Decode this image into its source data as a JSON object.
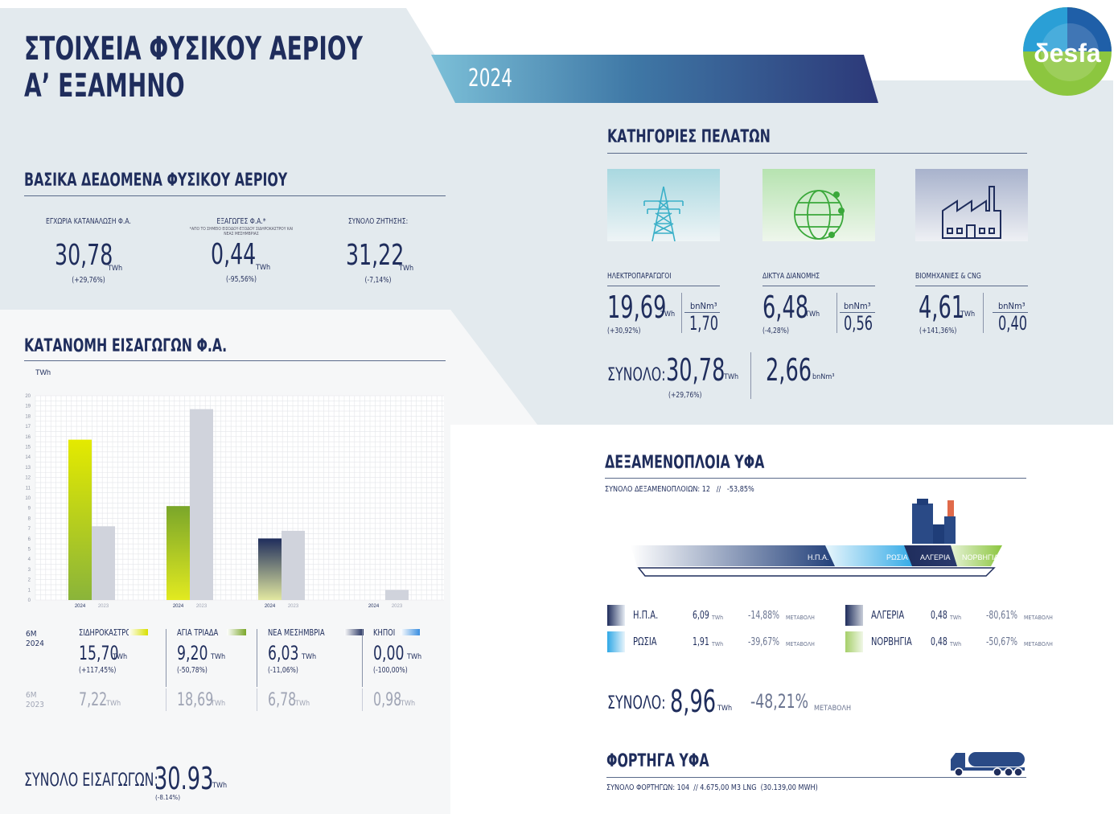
{
  "header": {
    "title_line1": "ΣΤΟΙΧΕΙΑ ΦΥΣΙΚΟΥ ΑΕΡΙΟΥ",
    "title_line2": "Α’ ΕΞΑΜΗΝΟ",
    "year": "2024",
    "logo_text": "δesfa"
  },
  "basic": {
    "title": "ΒΑΣΙΚΑ ΔΕΔΟΜΕΝΑ ΦΥΣΙΚΟΥ ΑΕΡΙΟΥ",
    "items": [
      {
        "label": "ΕΓΧΩΡΙΑ ΚΑΤΑΝΑΛΩΣΗ Φ.Α.",
        "note": "",
        "value": "30,78",
        "unit": "TWh",
        "change": "(+29,76%)"
      },
      {
        "label": "ΕΞΑΓΩΓΕΣ Φ.Α.*",
        "note": "*ΑΠΟ ΤΟ ΣΗΜΕΙΟ ΕΙΣΟΔΟΥ-ΕΞΟΔΟΥ ΣΙΔΗΡΟΚΑΣΤΡΟΥ ΚΑΙ ΝΕΑΣ ΜΕΣΗΜΒΡΙΑΣ",
        "value": "0,44",
        "unit": "TWh",
        "change": "(-95,56%)"
      },
      {
        "label": "ΣΥΝΟΛΟ ΖΗΤΗΣΗΣ:",
        "note": "",
        "value": "31,22",
        "unit": "TWh",
        "change": "(-7,14%)"
      }
    ]
  },
  "customers": {
    "title": "ΚΑΤΗΓΟΡΙΕΣ ΠΕΛΑΤΩΝ",
    "items": [
      {
        "label": "ΗΛΕΚΤΡΟΠΑΡΑΓΩΓΟΙ",
        "value": "19,69",
        "unit": "TWh",
        "change": "(+30,92%)",
        "bnm_label": "bnNm³",
        "bnm_value": "1,70",
        "icon": "power-pylon-icon"
      },
      {
        "label": "ΔΙΚΤΥΑ ΔΙΑΝΟΜΗΣ",
        "value": "6,48",
        "unit": "TWh",
        "change": "(-4,28%)",
        "bnm_label": "bnNm³",
        "bnm_value": "0,56",
        "icon": "globe-network-icon"
      },
      {
        "label": "ΒΙΟΜΗΧΑΝΙΕΣ & CNG",
        "value": "4,61",
        "unit": "TWh",
        "change": "(+141,36%)",
        "bnm_label": "bnNm³",
        "bnm_value": "0,40",
        "icon": "factory-icon"
      }
    ],
    "total_label": "ΣΥΝΟΛΟ:",
    "total_value": "30,78",
    "total_unit": "TWh",
    "total_change": "(+29,76%)",
    "total_bnm_value": "2,66",
    "total_bnm_unit": "bnNm³"
  },
  "imports": {
    "title": "ΚΑΤΑΝΟΜΗ ΕΙΣΑΓΩΓΩΝ Φ.Α.",
    "row_2024_label": "6M\n2024",
    "row_2023_label": "6M\n2023",
    "entries": [
      {
        "name": "ΣΙΔΗΡΟΚΑΣΤΡΟ",
        "v2024": "15,70",
        "unit": "TWh",
        "change": "(+117,45%)",
        "v2023": "7,22",
        "color": "#d8e000"
      },
      {
        "name": "ΑΓΙΑ ΤΡΙΑΔΑ",
        "v2024": "9,20",
        "unit": "TWh",
        "change": "(-50,78%)",
        "v2023": "18,69",
        "color": "#7aa62a"
      },
      {
        "name": "ΝΕΑ ΜΕΣΗΜΒΡΙΑ",
        "v2024": "6,03",
        "unit": "TWh",
        "change": "(-11,06%)",
        "v2023": "6,78",
        "color": "#1f2d5c"
      },
      {
        "name": "ΚΗΠΟΙ",
        "v2024": "0,00",
        "unit": "TWh",
        "change": "(-100,00%)",
        "v2023": "0,98",
        "color": "#3a8ee0"
      }
    ],
    "total_label": "ΣΥΝΟΛΟ ΕΙΣΑΓΩΓΩΝ:",
    "total_value": "30.93",
    "total_unit": "TWh",
    "total_change": "(-8.14%)"
  },
  "chart_data": {
    "type": "bar",
    "ylabel": "TWh",
    "ylim": [
      0,
      20
    ],
    "yticks": [
      "0",
      "1",
      "2",
      "3",
      "4",
      "5",
      "6",
      "7",
      "8",
      "9",
      "10",
      "11",
      "12",
      "13",
      "14",
      "15",
      "16",
      "17",
      "18",
      "19",
      "20"
    ],
    "categories": [
      "ΣΙΔΗΡΟΚΑΣΤΡΟ",
      "ΑΓΙΑ ΤΡΙΑΔΑ",
      "ΝΕΑ ΜΕΣΗΜΒΡΙΑ",
      "ΚΗΠΟΙ"
    ],
    "series": [
      {
        "name": "2024",
        "values": [
          15.7,
          9.2,
          6.03,
          0.0
        ]
      },
      {
        "name": "2023",
        "values": [
          7.22,
          18.69,
          6.78,
          0.98
        ]
      }
    ]
  },
  "lng": {
    "title": "ΔΕΞΑΜΕΝΟΠΛΟΙΑ ΥΦΑ",
    "subtitle": "ΣΥΝΟΛΟ ΔΕΞΑΜΕΝΟΠΛΟΙΩΝ: 12   //   -53,85%",
    "ship_labels": [
      "Η.Π.Α.",
      "ΡΩΣΙΑ",
      "ΑΛΓΕΡΙΑ",
      "ΝΟΡΒΗΓΙΑ"
    ],
    "rows": [
      {
        "name": "Η.Π.Α.",
        "value": "6,09",
        "unit": "TWh",
        "change": "-14,88%",
        "change_label": "ΜΕΤΑΒΟΛΗ",
        "color1": "#1f2d5c",
        "color2": "#e8eef5"
      },
      {
        "name": "ΑΛΓΕΡΙΑ",
        "value": "0,48",
        "unit": "TWh",
        "change": "-80,61%",
        "change_label": "ΜΕΤΑΒΟΛΗ",
        "color1": "#1f2d5c",
        "color2": "#c8cdd8"
      },
      {
        "name": "ΡΩΣΙΑ",
        "value": "1,91",
        "unit": "TWh",
        "change": "-39,67%",
        "change_label": "ΜΕΤΑΒΟΛΗ",
        "color1": "#2fa8e6",
        "color2": "#e8f4fb"
      },
      {
        "name": "ΝΟΡΒΗΓΙΑ",
        "value": "0,48",
        "unit": "TWh",
        "change": "-50,67%",
        "change_label": "ΜΕΤΑΒΟΛΗ",
        "color1": "#a6cf6a",
        "color2": "#f0f7e6"
      }
    ],
    "total_label": "ΣΥΝΟΛΟ:",
    "total_value": "8,96",
    "total_unit": "TWh",
    "total_change": "-48,21%",
    "total_change_label": "ΜΕΤΑΒΟΛΗ"
  },
  "trucks": {
    "title": "ΦΟΡΤΗΓΑ ΥΦΑ",
    "subtitle": "ΣΥΝΟΛΟ ΦΟΡΤΗΓΩΝ: 104  // 4.675,00 M3 LNG  (30.139,00 MWH)"
  }
}
